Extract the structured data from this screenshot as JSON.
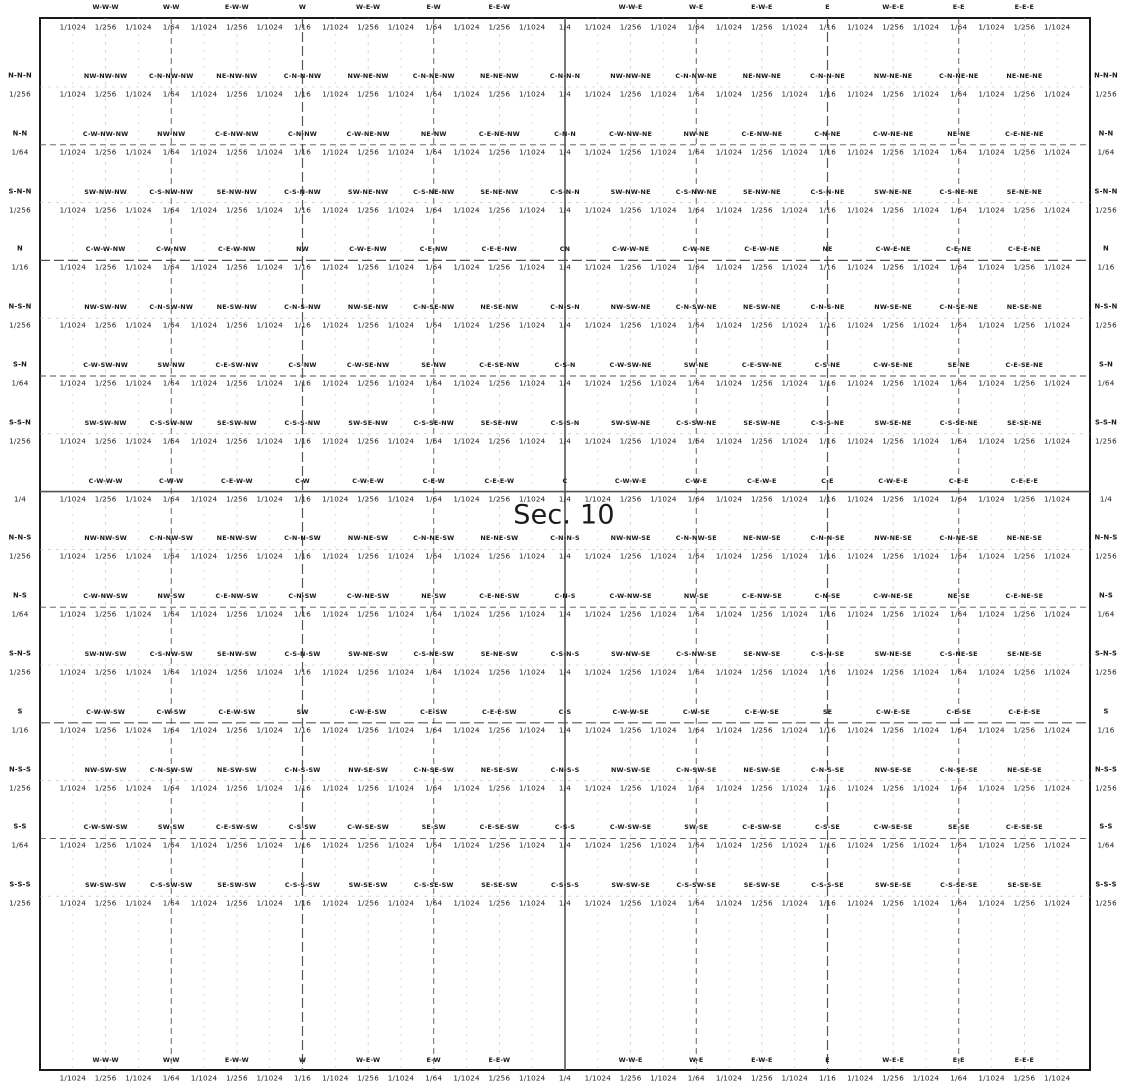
{
  "title": "Sec. 10",
  "column_fractions": [
    "1/1024",
    "1/256",
    "1/1024",
    "1/64",
    "1/1024",
    "1/256",
    "1/1024",
    "1/16",
    "1/1024",
    "1/256",
    "1/1024",
    "1/64",
    "1/1024",
    "1/256",
    "1/1024",
    "1/4",
    "1/1024",
    "1/256",
    "1/1024",
    "1/64",
    "1/1024",
    "1/256",
    "1/1024",
    "1/16",
    "1/1024",
    "1/256",
    "1/1024",
    "1/64",
    "1/1024",
    "1/256",
    "1/1024"
  ],
  "row_sides": [
    {
      "left": "N-N-N",
      "left_frac": "1/256",
      "right": "N-N-N",
      "right_frac": "1/256"
    },
    {
      "left": "N-N",
      "left_frac": "1/64",
      "right": "N-N",
      "right_frac": "1/64"
    },
    {
      "left": "S-N-N",
      "left_frac": "1/256",
      "right": "S-N-N",
      "right_frac": "1/256"
    },
    {
      "left": "N",
      "left_frac": "1/16",
      "right": "N",
      "right_frac": "1/16"
    },
    {
      "left": "N-S-N",
      "left_frac": "1/256",
      "right": "N-S-N",
      "right_frac": "1/256"
    },
    {
      "left": "S-N",
      "left_frac": "1/64",
      "right": "S-N",
      "right_frac": "1/64"
    },
    {
      "left": "S-S-N",
      "left_frac": "1/256",
      "right": "S-S-N",
      "right_frac": "1/256"
    },
    {
      "left": "",
      "left_frac": "1/4",
      "right": "",
      "right_frac": "1/4"
    },
    {
      "left": "N-N-S",
      "left_frac": "1/256",
      "right": "N-N-S",
      "right_frac": "1/256"
    },
    {
      "left": "N-S",
      "left_frac": "1/64",
      "right": "N-S",
      "right_frac": "1/64"
    },
    {
      "left": "S-N-S",
      "left_frac": "1/256",
      "right": "S-N-S",
      "right_frac": "1/256"
    },
    {
      "left": "S",
      "left_frac": "1/16",
      "right": "S",
      "right_frac": "1/16"
    },
    {
      "left": "N-S-S",
      "left_frac": "1/256",
      "right": "N-S-S",
      "right_frac": "1/256"
    },
    {
      "left": "S-S",
      "left_frac": "1/64",
      "right": "S-S",
      "right_frac": "1/64"
    },
    {
      "left": "S-S-S",
      "left_frac": "1/256",
      "right": "S-S-S",
      "right_frac": "1/256"
    }
  ],
  "top_labels": [
    "W-W-W",
    "W-W",
    "E-W-W",
    "W",
    "W-E-W",
    "E-W",
    "E-E-W",
    "W-W-E",
    "W-E",
    "E-W-E",
    "E",
    "W-E-E",
    "E-E",
    "E-E-E"
  ],
  "bottom_labels": [
    "W-W-W",
    "W-W",
    "E-W-W",
    "W",
    "W-E-W",
    "E-W",
    "E-E-W",
    "W-W-E",
    "W-E",
    "E-W-E",
    "E",
    "W-E-E",
    "E-E",
    "E-E-E"
  ],
  "rows": [
    {
      "labels": [
        "NW-NW-NW",
        "C-N-NW-NW",
        "NE-NW-NW",
        "C-N-N-NW",
        "NW-NE-NW",
        "C-N-NE-NW",
        "NE-NE-NW",
        "C-N-N-N",
        "NW-NW-NE",
        "C-N-NW-NE",
        "NE-NW-NE",
        "C-N-N-NE",
        "NW-NE-NE",
        "C-N-NE-NE",
        "NE-NE-NE"
      ]
    },
    {
      "labels": [
        "C-W-NW-NW",
        "NW-NW",
        "C-E-NW-NW",
        "C-N-NW",
        "C-W-NE-NW",
        "NE-NW",
        "C-E-NE-NW",
        "C-N-N",
        "C-W-NW-NE",
        "NW-NE",
        "C-E-NW-NE",
        "C-N-NE",
        "C-W-NE-NE",
        "NE-NE",
        "C-E-NE-NE"
      ]
    },
    {
      "labels": [
        "SW-NW-NW",
        "C-S-NW-NW",
        "SE-NW-NW",
        "C-S-N-NW",
        "SW-NE-NW",
        "C-S-NE-NW",
        "SE-NE-NW",
        "C-S-N-N",
        "SW-NW-NE",
        "C-S-NW-NE",
        "SE-NW-NE",
        "C-S-N-NE",
        "SW-NE-NE",
        "C-S-NE-NE",
        "SE-NE-NE"
      ]
    },
    {
      "labels": [
        "C-W-W-NW",
        "C-W-NW",
        "C-E-W-NW",
        "NW",
        "C-W-E-NW",
        "C-E-NW",
        "C-E-E-NW",
        "CN",
        "C-W-W-NE",
        "C-W-NE",
        "C-E-W-NE",
        "NE",
        "C-W-E-NE",
        "C-E-NE",
        "C-E-E-NE"
      ]
    },
    {
      "labels": [
        "NW-SW-NW",
        "C-N-SW-NW",
        "NE-SW-NW",
        "C-N-S-NW",
        "NW-SE-NW",
        "C-N-SE-NW",
        "NE-SE-NW",
        "C-N-S-N",
        "NW-SW-NE",
        "C-N-SW-NE",
        "NE-SW-NE",
        "C-N-S-NE",
        "NW-SE-NE",
        "C-N-SE-NE",
        "NE-SE-NE"
      ]
    },
    {
      "labels": [
        "C-W-SW-NW",
        "SW-NW",
        "C-E-SW-NW",
        "C-S-NW",
        "C-W-SE-NW",
        "SE-NW",
        "C-E-SE-NW",
        "C-S-N",
        "C-W-SW-NE",
        "SW-NE",
        "C-E-SW-NE",
        "C-S-NE",
        "C-W-SE-NE",
        "SE-NE",
        "C-E-SE-NE"
      ]
    },
    {
      "labels": [
        "SW-SW-NW",
        "C-S-SW-NW",
        "SE-SW-NW",
        "C-S-S-NW",
        "SW-SE-NW",
        "C-S-SE-NW",
        "SE-SE-NW",
        "C-S-S-N",
        "SW-SW-NE",
        "C-S-SW-NE",
        "SE-SW-NE",
        "C-S-S-NE",
        "SW-SE-NE",
        "C-S-SE-NE",
        "SE-SE-NE"
      ]
    },
    {
      "labels": [
        "C-W-W-W",
        "C-W-W",
        "C-E-W-W",
        "C-W",
        "C-W-E-W",
        "C-E-W",
        "C-E-E-W",
        "C",
        "C-W-W-E",
        "C-W-E",
        "C-E-W-E",
        "C-E",
        "C-W-E-E",
        "C-E-E",
        "C-E-E-E"
      ]
    },
    {
      "labels": [
        "NW-NW-SW",
        "C-N-NW-SW",
        "NE-NW-SW",
        "C-N-N-SW",
        "NW-NE-SW",
        "C-N-NE-SW",
        "NE-NE-SW",
        "C-N-N-S",
        "NW-NW-SE",
        "C-N-NW-SE",
        "NE-NW-SE",
        "C-N-N-SE",
        "NW-NE-SE",
        "C-N-NE-SE",
        "NE-NE-SE"
      ]
    },
    {
      "labels": [
        "C-W-NW-SW",
        "NW-SW",
        "C-E-NW-SW",
        "C-N-SW",
        "C-W-NE-SW",
        "NE-SW",
        "C-E-NE-SW",
        "C-N-S",
        "C-W-NW-SE",
        "NW-SE",
        "C-E-NW-SE",
        "C-N-SE",
        "C-W-NE-SE",
        "NE-SE",
        "C-E-NE-SE"
      ]
    },
    {
      "labels": [
        "SW-NW-SW",
        "C-S-NW-SW",
        "SE-NW-SW",
        "C-S-N-SW",
        "SW-NE-SW",
        "C-S-NE-SW",
        "SE-NE-SW",
        "C-S-N-S",
        "SW-NW-SE",
        "C-S-NW-SE",
        "SE-NW-SE",
        "C-S-N-SE",
        "SW-NE-SE",
        "C-S-NE-SE",
        "SE-NE-SE"
      ]
    },
    {
      "labels": [
        "C-W-W-SW",
        "C-W-SW",
        "C-E-W-SW",
        "SW",
        "C-W-E-SW",
        "C-E-SW",
        "C-E-E-SW",
        "C-S",
        "C-W-W-SE",
        "C-W-SE",
        "C-E-W-SE",
        "SE",
        "C-W-E-SE",
        "C-E-SE",
        "C-E-E-SE"
      ]
    },
    {
      "labels": [
        "NW-SW-SW",
        "C-N-SW-SW",
        "NE-SW-SW",
        "C-N-S-SW",
        "NW-SE-SW",
        "C-N-SE-SW",
        "NE-SE-SW",
        "C-N-S-S",
        "NW-SW-SE",
        "C-N-SW-SE",
        "NE-SW-SE",
        "C-N-S-SE",
        "NW-SE-SE",
        "C-N-SE-SE",
        "NE-SE-SE"
      ]
    },
    {
      "labels": [
        "C-W-SW-SW",
        "SW-SW",
        "C-E-SW-SW",
        "C-S-SW",
        "C-W-SE-SW",
        "SE-SW",
        "C-E-SE-SW",
        "C-S-S",
        "C-W-SW-SE",
        "SW-SE",
        "C-E-SW-SE",
        "C-S-SE",
        "C-W-SE-SE",
        "SE-SE",
        "C-E-SE-SE"
      ]
    },
    {
      "labels": [
        "SW-SW-SW",
        "C-S-SW-SW",
        "SE-SW-SW",
        "C-S-S-SW",
        "SW-SE-SW",
        "C-S-SE-SW",
        "SE-SE-SW",
        "C-S-S-S",
        "SW-SW-SE",
        "C-S-SW-SE",
        "SE-SW-SE",
        "C-S-S-SE",
        "SW-SE-SE",
        "C-S-SE-SE",
        "SE-SE-SE"
      ]
    }
  ],
  "colors": {
    "ink": "#1a1a1a",
    "grid": "#555555",
    "faint": "#bdbdbd"
  }
}
